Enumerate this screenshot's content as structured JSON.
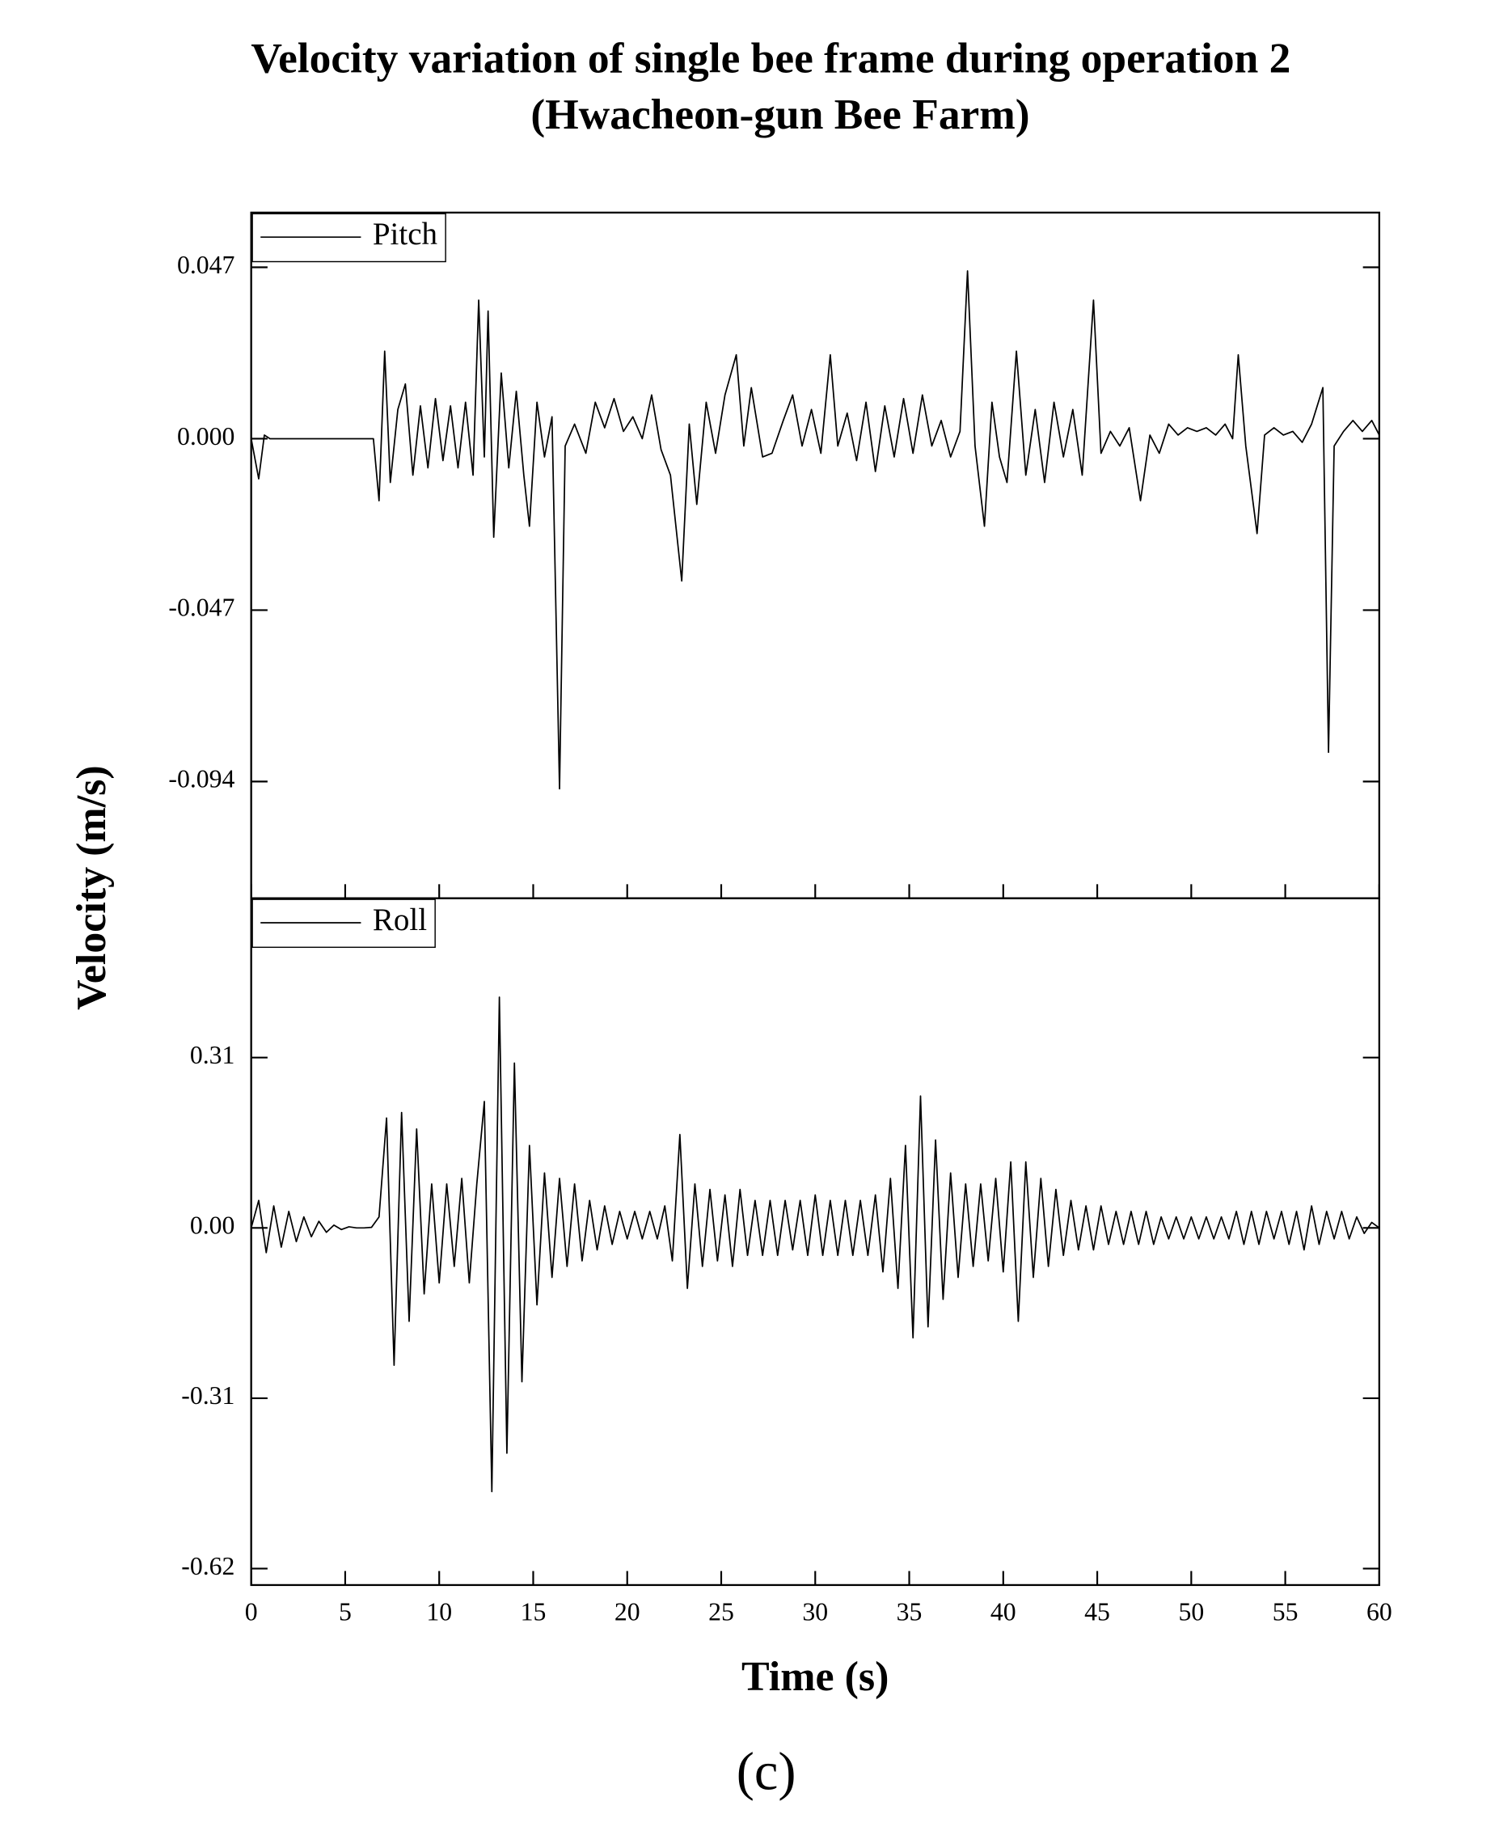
{
  "title": "Velocity variation of single bee frame during operation 2",
  "subtitle": "(Hwacheon-gun Bee Farm)",
  "y_label": "Velocity (m/s)",
  "x_label": "Time (s)",
  "caption": "(c)",
  "chart_data": [
    {
      "type": "line",
      "legend": "top-left",
      "ylim": [
        -0.126,
        0.062
      ],
      "yticks": [
        {
          "value": -0.094,
          "label": "-0.094"
        },
        -0.047,
        {
          "value": 0,
          "label": "0.000"
        },
        0.047
      ],
      "x": [
        0,
        0.4,
        0.7,
        1,
        2,
        3,
        4,
        5,
        6,
        6.5,
        6.8,
        7.1,
        7.4,
        7.8,
        8.2,
        8.6,
        9.0,
        9.4,
        9.8,
        10.2,
        10.6,
        11.0,
        11.4,
        11.8,
        12.1,
        12.4,
        12.6,
        12.9,
        13.3,
        13.7,
        14.1,
        14.5,
        14.8,
        15.2,
        15.6,
        16.0,
        16.4,
        16.7,
        17.2,
        17.8,
        18.3,
        18.8,
        19.3,
        19.8,
        20.3,
        20.8,
        21.3,
        21.8,
        22.3,
        22.9,
        23.3,
        23.7,
        24.2,
        24.7,
        25.2,
        25.8,
        26.2,
        26.6,
        27.2,
        27.7,
        28.3,
        28.8,
        29.3,
        29.8,
        30.3,
        30.8,
        31.2,
        31.7,
        32.2,
        32.7,
        33.2,
        33.7,
        34.2,
        34.7,
        35.2,
        35.7,
        36.2,
        36.7,
        37.2,
        37.7,
        38.1,
        38.5,
        39.0,
        39.4,
        39.8,
        40.2,
        40.7,
        41.2,
        41.7,
        42.2,
        42.7,
        43.2,
        43.7,
        44.2,
        44.8,
        45.2,
        45.7,
        46.2,
        46.7,
        47.3,
        47.8,
        48.3,
        48.8,
        49.3,
        49.8,
        50.3,
        50.8,
        51.3,
        51.8,
        52.2,
        52.5,
        52.9,
        53.5,
        53.9,
        54.4,
        54.9,
        55.4,
        55.9,
        56.4,
        57.0,
        57.3,
        57.6,
        58.1,
        58.6,
        59.1,
        59.6,
        60
      ],
      "series": [
        {
          "name": "Pitch",
          "color": "#000000",
          "values": [
            0,
            -0.011,
            0.001,
            0,
            0,
            0,
            0,
            0,
            0,
            0,
            -0.017,
            0.024,
            -0.012,
            0.008,
            0.015,
            -0.01,
            0.009,
            -0.008,
            0.011,
            -0.006,
            0.009,
            -0.008,
            0.01,
            -0.01,
            0.038,
            -0.005,
            0.035,
            -0.027,
            0.018,
            -0.008,
            0.013,
            -0.01,
            -0.024,
            0.01,
            -0.005,
            0.006,
            -0.096,
            -0.002,
            0.004,
            -0.004,
            0.01,
            0.003,
            0.011,
            0.002,
            0.006,
            0,
            0.012,
            -0.003,
            -0.01,
            -0.039,
            0.004,
            -0.018,
            0.01,
            -0.004,
            0.012,
            0.023,
            -0.002,
            0.014,
            -0.005,
            -0.004,
            0.005,
            0.012,
            -0.002,
            0.008,
            -0.004,
            0.023,
            -0.002,
            0.007,
            -0.006,
            0.01,
            -0.009,
            0.009,
            -0.005,
            0.011,
            -0.004,
            0.012,
            -0.002,
            0.005,
            -0.005,
            0.002,
            0.046,
            -0.002,
            -0.024,
            0.01,
            -0.005,
            -0.012,
            0.024,
            -0.01,
            0.008,
            -0.012,
            0.01,
            -0.005,
            0.008,
            -0.01,
            0.038,
            -0.004,
            0.002,
            -0.002,
            0.003,
            -0.017,
            0.001,
            -0.004,
            0.004,
            0.001,
            0.003,
            0.002,
            0.003,
            0.001,
            0.004,
            0,
            0.023,
            -0.002,
            -0.026,
            0.001,
            0.003,
            0.001,
            0.002,
            -0.001,
            0.004,
            0.014,
            -0.086,
            -0.002,
            0.002,
            0.005,
            0.002,
            0.005,
            0.001
          ]
        }
      ]
    },
    {
      "type": "line",
      "legend": "top-left",
      "xlim": [
        0,
        60
      ],
      "xticks": [
        0,
        5,
        10,
        15,
        20,
        25,
        30,
        35,
        40,
        45,
        50,
        55,
        60
      ],
      "ylim": [
        -0.65,
        0.6
      ],
      "yticks": [
        -0.62,
        -0.31,
        {
          "value": 0,
          "label": "0.00"
        },
        0.31
      ],
      "x": [
        0,
        0.4,
        0.8,
        1.2,
        1.6,
        2,
        2.4,
        2.8,
        3.2,
        3.6,
        4,
        4.4,
        4.8,
        5.2,
        5.6,
        6,
        6.4,
        6.8,
        7.2,
        7.6,
        8,
        8.4,
        8.8,
        9.2,
        9.6,
        10,
        10.4,
        10.8,
        11.2,
        11.6,
        12,
        12.4,
        12.8,
        13.2,
        13.6,
        14,
        14.4,
        14.8,
        15.2,
        15.6,
        16,
        16.4,
        16.8,
        17.2,
        17.6,
        18,
        18.4,
        18.8,
        19.2,
        19.6,
        20,
        20.4,
        20.8,
        21.2,
        21.6,
        22,
        22.4,
        22.8,
        23.2,
        23.6,
        24,
        24.4,
        24.8,
        25.2,
        25.6,
        26,
        26.4,
        26.8,
        27.2,
        27.6,
        28,
        28.4,
        28.8,
        29.2,
        29.6,
        30,
        30.4,
        30.8,
        31.2,
        31.6,
        32,
        32.4,
        32.8,
        33.2,
        33.6,
        34,
        34.4,
        34.8,
        35.2,
        35.6,
        36,
        36.4,
        36.8,
        37.2,
        37.6,
        38,
        38.4,
        38.8,
        39.2,
        39.6,
        40,
        40.4,
        40.8,
        41.2,
        41.6,
        42,
        42.4,
        42.8,
        43.2,
        43.6,
        44,
        44.4,
        44.8,
        45.2,
        45.6,
        46,
        46.4,
        46.8,
        47.2,
        47.6,
        48,
        48.4,
        48.8,
        49.2,
        49.6,
        50,
        50.4,
        50.8,
        51.2,
        51.6,
        52,
        52.4,
        52.8,
        53.2,
        53.6,
        54,
        54.4,
        54.8,
        55.2,
        55.6,
        56,
        56.4,
        56.8,
        57.2,
        57.6,
        58,
        58.4,
        58.8,
        59.2,
        59.6,
        60
      ],
      "series": [
        {
          "name": "Roll",
          "color": "#000000",
          "values": [
            0,
            0.05,
            -0.045,
            0.04,
            -0.035,
            0.03,
            -0.025,
            0.02,
            -0.016,
            0.012,
            -0.008,
            0.005,
            -0.003,
            0.002,
            0,
            0,
            0.001,
            0.02,
            0.2,
            -0.25,
            0.21,
            -0.17,
            0.18,
            -0.12,
            0.08,
            -0.1,
            0.08,
            -0.07,
            0.09,
            -0.1,
            0.08,
            0.23,
            -0.48,
            0.42,
            -0.41,
            0.3,
            -0.28,
            0.15,
            -0.14,
            0.1,
            -0.09,
            0.09,
            -0.07,
            0.08,
            -0.06,
            0.05,
            -0.04,
            0.04,
            -0.03,
            0.03,
            -0.02,
            0.03,
            -0.02,
            0.03,
            -0.02,
            0.04,
            -0.06,
            0.17,
            -0.11,
            0.08,
            -0.07,
            0.07,
            -0.06,
            0.06,
            -0.07,
            0.07,
            -0.05,
            0.05,
            -0.05,
            0.05,
            -0.05,
            0.05,
            -0.04,
            0.05,
            -0.05,
            0.06,
            -0.05,
            0.05,
            -0.05,
            0.05,
            -0.05,
            0.05,
            -0.05,
            0.06,
            -0.08,
            0.09,
            -0.11,
            0.15,
            -0.2,
            0.24,
            -0.18,
            0.16,
            -0.13,
            0.1,
            -0.09,
            0.08,
            -0.07,
            0.08,
            -0.06,
            0.09,
            -0.08,
            0.12,
            -0.17,
            0.12,
            -0.09,
            0.09,
            -0.07,
            0.07,
            -0.05,
            0.05,
            -0.04,
            0.04,
            -0.04,
            0.04,
            -0.03,
            0.03,
            -0.03,
            0.03,
            -0.03,
            0.03,
            -0.03,
            0.02,
            -0.02,
            0.02,
            -0.02,
            0.02,
            -0.02,
            0.02,
            -0.02,
            0.02,
            -0.02,
            0.03,
            -0.03,
            0.03,
            -0.03,
            0.03,
            -0.02,
            0.03,
            -0.03,
            0.03,
            -0.04,
            0.04,
            -0.03,
            0.03,
            -0.02,
            0.03,
            -0.02,
            0.02,
            -0.01,
            0.01,
            0
          ]
        }
      ]
    }
  ]
}
